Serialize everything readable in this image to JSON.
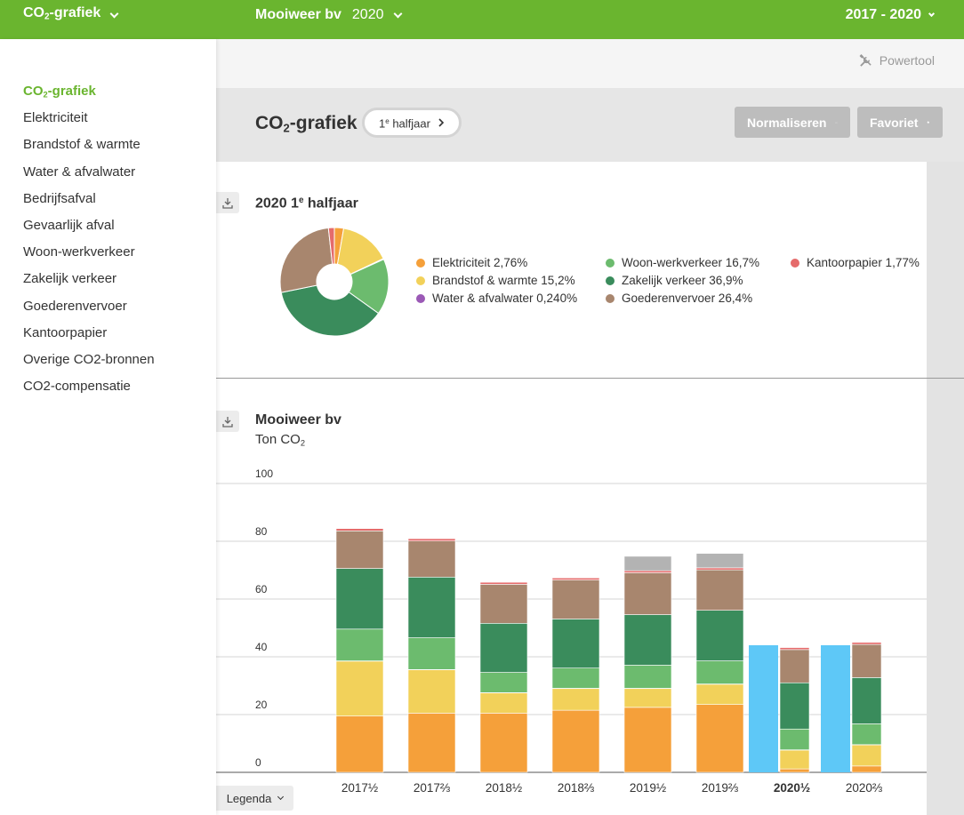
{
  "topbar": {
    "app_label_pre": "CO",
    "app_label_sub": "2",
    "app_label_post": "-grafiek",
    "company": "Mooiweer bv",
    "year": "2020",
    "range": "2017 - 2020"
  },
  "sidebar": {
    "items": [
      {
        "pre": "CO",
        "sub": "2",
        "post": "-grafiek"
      },
      {
        "label": "Elektriciteit"
      },
      {
        "label": "Brandstof & warmte"
      },
      {
        "label": "Water & afvalwater"
      },
      {
        "label": "Bedrijfsafval"
      },
      {
        "label": "Gevaarlijk afval"
      },
      {
        "label": "Woon-werkverkeer"
      },
      {
        "label": "Zakelijk verkeer"
      },
      {
        "label": "Goederenvervoer"
      },
      {
        "label": "Kantoorpapier"
      },
      {
        "label": "Overige CO2-bronnen"
      },
      {
        "label": "CO2-compensatie"
      }
    ]
  },
  "powertool": {
    "label": "Powertool",
    "icon": "tools-icon"
  },
  "header": {
    "title_pre": "CO",
    "title_sub": "2",
    "title_post": "-grafiek",
    "period_num": "1",
    "period_sup": "e",
    "period_text": " halfjaar",
    "normalize_label": "Normaliseren",
    "favorite_label": "Favoriet"
  },
  "pie_section": {
    "title_pre": "2020 1",
    "title_sup": "e",
    "title_post": " halfjaar"
  },
  "bar_section": {
    "title": "Mooiweer bv",
    "unit_pre": "Ton CO",
    "unit_sub": "2"
  },
  "legenda_label": "Legenda",
  "colors": {
    "brand": "#6ab52f",
    "elektriciteit": "#f5a03a",
    "brandstof": "#f2d15a",
    "water": "#9b59b6",
    "woonwerk": "#6cbb6e",
    "zakelijk": "#3a8c5c",
    "goederen": "#a8866e",
    "kantoorpapier": "#e56b6b",
    "overige": "#b3b3b3",
    "compensatie": "#5ec8f7"
  },
  "chart_data": [
    {
      "type": "pie",
      "title": "2020 1e halfjaar",
      "slices": [
        {
          "label": "Elektriciteit",
          "value": 2.76,
          "text": "Elektriciteit 2,76%",
          "color": "#f5a03a"
        },
        {
          "label": "Brandstof & warmte",
          "value": 15.2,
          "text": "Brandstof & warmte 15,2%",
          "color": "#f2d15a"
        },
        {
          "label": "Water & afvalwater",
          "value": 0.24,
          "text": "Water & afvalwater 0,240%",
          "color": "#9b59b6"
        },
        {
          "label": "Woon-werkverkeer",
          "value": 16.7,
          "text": "Woon-werkverkeer 16,7%",
          "color": "#6cbb6e"
        },
        {
          "label": "Zakelijk verkeer",
          "value": 36.9,
          "text": "Zakelijk verkeer 36,9%",
          "color": "#3a8c5c"
        },
        {
          "label": "Goederenvervoer",
          "value": 26.4,
          "text": "Goederenvervoer 26,4%",
          "color": "#a8866e"
        },
        {
          "label": "Kantoorpapier",
          "value": 1.77,
          "text": "Kantoorpapier 1,77%",
          "color": "#e56b6b"
        }
      ]
    },
    {
      "type": "bar",
      "stacked": true,
      "title": "Mooiweer bv",
      "ylabel": "Ton CO2",
      "ylim": [
        0,
        100
      ],
      "yticks": [
        0,
        20,
        40,
        60,
        80,
        100
      ],
      "categories": [
        {
          "year": "2017",
          "half": "½",
          "bold": false
        },
        {
          "year": "2017",
          "half": "⅔",
          "bold": false
        },
        {
          "year": "2018",
          "half": "½",
          "bold": false
        },
        {
          "year": "2018",
          "half": "⅔",
          "bold": false
        },
        {
          "year": "2019",
          "half": "½",
          "bold": false
        },
        {
          "year": "2019",
          "half": "⅔",
          "bold": false
        },
        {
          "year": "2020",
          "half": "½",
          "bold": true
        },
        {
          "year": "2020",
          "half": "⅔",
          "bold": false
        }
      ],
      "series": [
        {
          "name": "Elektriciteit",
          "color": "#f5a03a",
          "values": [
            19.5,
            20.5,
            20.5,
            21.5,
            22.5,
            23.5,
            1.2,
            2.2
          ]
        },
        {
          "name": "Brandstof & warmte",
          "color": "#f2d15a",
          "values": [
            19.0,
            15.0,
            7.0,
            7.5,
            6.5,
            7.0,
            6.5,
            7.3
          ]
        },
        {
          "name": "Water & afvalwater",
          "color": "#9b59b6",
          "values": [
            0.1,
            0.1,
            0.1,
            0.1,
            0.1,
            0.1,
            0.1,
            0.1
          ]
        },
        {
          "name": "Woon-werkverkeer",
          "color": "#6cbb6e",
          "values": [
            11.0,
            11.0,
            7.0,
            7.0,
            8.0,
            8.0,
            7.2,
            7.2
          ]
        },
        {
          "name": "Zakelijk verkeer",
          "color": "#3a8c5c",
          "values": [
            21.0,
            21.0,
            17.0,
            17.0,
            17.5,
            17.5,
            16.0,
            16.0
          ]
        },
        {
          "name": "Goederenvervoer",
          "color": "#a8866e",
          "values": [
            13.0,
            12.5,
            13.5,
            13.5,
            14.5,
            14.0,
            11.5,
            11.5
          ]
        },
        {
          "name": "Kantoorpapier",
          "color": "#e56b6b",
          "values": [
            0.8,
            0.8,
            0.7,
            0.7,
            0.7,
            0.7,
            0.7,
            0.7
          ]
        },
        {
          "name": "Overige CO2-bronnen",
          "color": "#b3b3b3",
          "values": [
            0,
            0,
            0,
            0,
            5.0,
            5.0,
            0,
            0
          ]
        }
      ],
      "compensation": {
        "name": "CO2-compensatie",
        "color": "#5ec8f7",
        "values": [
          0,
          0,
          0,
          0,
          0,
          0,
          44.0,
          44.0
        ]
      }
    }
  ]
}
